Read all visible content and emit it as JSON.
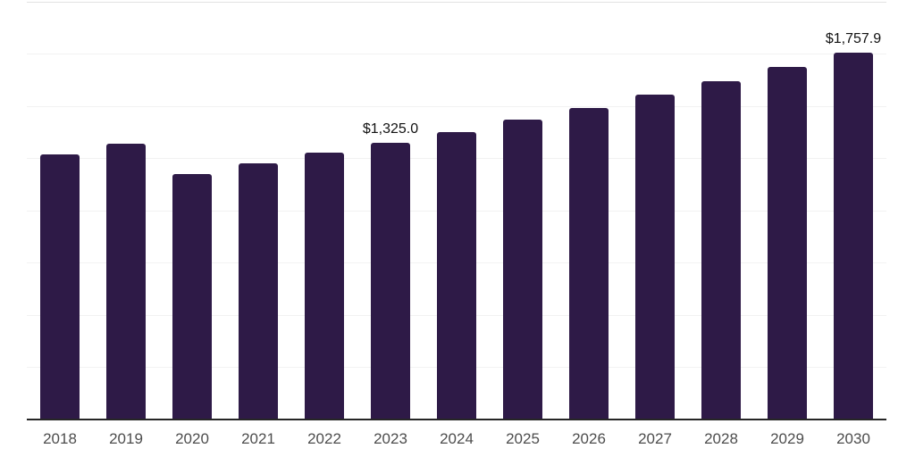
{
  "chart_data": {
    "type": "bar",
    "title": "",
    "xlabel": "",
    "ylabel": "",
    "categories": [
      "2018",
      "2019",
      "2020",
      "2021",
      "2022",
      "2023",
      "2024",
      "2025",
      "2026",
      "2027",
      "2028",
      "2029",
      "2030"
    ],
    "values": [
      1269.5,
      1322.0,
      1177.0,
      1225.2,
      1276.4,
      1325.0,
      1376.1,
      1435.8,
      1492.6,
      1553.6,
      1620.5,
      1687.5,
      1757.9
    ],
    "data_labels": {
      "2023": "$1,325.0",
      "2030": "$1,757.9"
    },
    "currency_prefix": "$",
    "ylim": [
      0,
      2000
    ],
    "grid_step": 250,
    "grid": "horizontal-only",
    "legend": "none",
    "colors": {
      "bar": "#2e1a47",
      "axis_line": "#262626",
      "gridline": "#f2f2f2",
      "top_gridline": "#e2e2e2",
      "tick_label": "#4d4d4d",
      "data_label": "#111111",
      "background": "#ffffff"
    }
  }
}
